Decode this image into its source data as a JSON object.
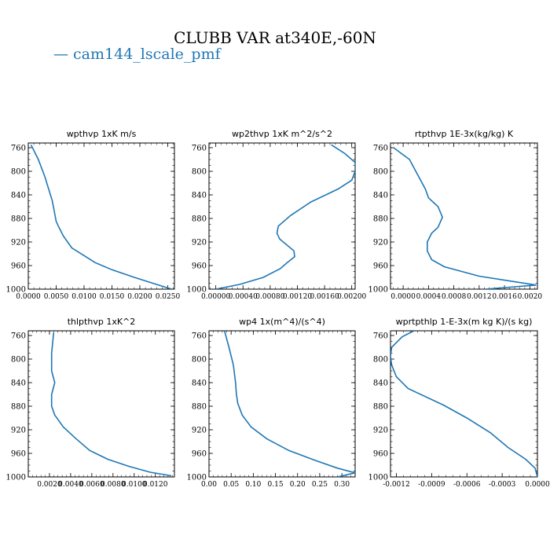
{
  "title": "CLUBB VAR at340E,-60N",
  "legend": [
    {
      "label": "— cam144_lscale_pmf",
      "color": "#1f77b4"
    }
  ],
  "chart_data": [
    {
      "type": "line",
      "title": "wpthvp   1xK m/s",
      "xlim": [
        0.0,
        0.0262
      ],
      "ylim": [
        1000,
        752
      ],
      "xticks": [
        0.0,
        0.005,
        0.01,
        0.015,
        0.02,
        0.025
      ],
      "xtick_labels": [
        "0.0000",
        "0.0050",
        "0.0100",
        "0.0150",
        "0.0200",
        "0.0250"
      ],
      "yticks": [
        760,
        800,
        840,
        880,
        920,
        960,
        1000
      ],
      "series": [
        {
          "x": [
            0.0005,
            0.0018,
            0.003,
            0.0043,
            0.005,
            0.0055,
            0.0063,
            0.0078,
            0.01,
            0.012,
            0.015,
            0.019,
            0.023,
            0.0257
          ],
          "y": [
            755,
            780,
            810,
            850,
            885,
            895,
            910,
            930,
            943,
            955,
            967,
            980,
            992,
            1000
          ]
        }
      ]
    },
    {
      "type": "line",
      "title": "wp2thvp   1xK m^2/s^2",
      "xlim": [
        -0.0001,
        0.00205
      ],
      "ylim": [
        1000,
        752
      ],
      "xticks": [
        0.0,
        0.0004,
        0.0008,
        0.0012,
        0.0016,
        0.002
      ],
      "xtick_labels": [
        "0.00000",
        "0.00040",
        "0.00080",
        "0.00120",
        "0.00160",
        "0.00200"
      ],
      "yticks": [
        760,
        800,
        840,
        880,
        920,
        960,
        1000
      ],
      "series": [
        {
          "x": [
            0.0017,
            0.0019,
            0.00205,
            0.00205,
            0.002,
            0.0018,
            0.0014,
            0.0011,
            0.00092,
            0.0009,
            0.00094,
            0.00115,
            0.00116,
            0.00105,
            0.00095,
            0.0007,
            0.00035,
            0.0
          ],
          "y": [
            755,
            770,
            785,
            800,
            815,
            830,
            852,
            875,
            893,
            905,
            915,
            935,
            945,
            955,
            965,
            980,
            992,
            1000
          ]
        }
      ]
    },
    {
      "type": "line",
      "title": "rtpthvp   1E-3x(kg/kg) K",
      "xlim": [
        -0.0002,
        0.00212
      ],
      "ylim": [
        1000,
        752
      ],
      "xticks": [
        0.0,
        0.0004,
        0.0008,
        0.0012,
        0.0016,
        0.002
      ],
      "xtick_labels": [
        "0.0000",
        "0.0004",
        "0.0008",
        "0.0012",
        "0.0016",
        "0.0020"
      ],
      "yticks": [
        760,
        800,
        840,
        880,
        920,
        960,
        1000
      ],
      "series": [
        {
          "x": [
            -0.00015,
            0.0001,
            0.0002,
            0.00035,
            0.0004,
            0.00055,
            0.00062,
            0.00055,
            0.00045,
            0.00038,
            0.00038,
            0.00045,
            0.00065,
            0.0012,
            0.0021,
            0.0013
          ],
          "y": [
            760,
            780,
            800,
            830,
            845,
            860,
            878,
            895,
            905,
            920,
            935,
            950,
            962,
            978,
            993,
            1000
          ]
        }
      ]
    },
    {
      "type": "line",
      "title": "thlpthvp   1xK^2",
      "xlim": [
        0.0,
        0.0138
      ],
      "ylim": [
        1000,
        752
      ],
      "xticks": [
        0.002,
        0.004,
        0.006,
        0.008,
        0.01,
        0.012
      ],
      "xtick_labels": [
        "0.0020",
        "0.0040",
        "0.0060",
        "0.0080",
        "0.0100",
        "0.0120"
      ],
      "yticks": [
        760,
        800,
        840,
        880,
        920,
        960,
        1000
      ],
      "series": [
        {
          "x": [
            0.0024,
            0.0022,
            0.0022,
            0.0025,
            0.0022,
            0.0022,
            0.0025,
            0.0033,
            0.0045,
            0.0058,
            0.0075,
            0.0095,
            0.0115,
            0.0135
          ],
          "y": [
            755,
            790,
            820,
            840,
            860,
            880,
            895,
            915,
            935,
            955,
            970,
            982,
            992,
            998
          ]
        }
      ]
    },
    {
      "type": "line",
      "title": "wp4   1x(m^4)/(s^4)",
      "xlim": [
        0.0,
        0.33
      ],
      "ylim": [
        1000,
        752
      ],
      "xticks": [
        0.0,
        0.05,
        0.1,
        0.15,
        0.2,
        0.25,
        0.3
      ],
      "xtick_labels": [
        "0.00",
        "0.05",
        "0.10",
        "0.15",
        "0.20",
        "0.25",
        "0.30"
      ],
      "yticks": [
        760,
        800,
        840,
        880,
        920,
        960,
        1000
      ],
      "series": [
        {
          "x": [
            0.035,
            0.045,
            0.055,
            0.06,
            0.062,
            0.065,
            0.075,
            0.095,
            0.13,
            0.18,
            0.24,
            0.29,
            0.33,
            0.29
          ],
          "y": [
            752,
            780,
            810,
            840,
            860,
            875,
            895,
            915,
            935,
            955,
            972,
            985,
            993,
            1000
          ]
        }
      ]
    },
    {
      "type": "line",
      "title": "wprtpthlp   1-E-3x(m kg K)/(s kg)",
      "xlim": [
        -0.00125,
        0.0
      ],
      "ylim": [
        1000,
        752
      ],
      "xticks": [
        -0.0012,
        -0.0009,
        -0.0006,
        -0.0003,
        0.0
      ],
      "xtick_labels": [
        "-0.0012",
        "-0.0009",
        "-0.0006",
        "-0.0003",
        "0.0000"
      ],
      "yticks": [
        760,
        800,
        840,
        880,
        920,
        960,
        1000
      ],
      "series": [
        {
          "x": [
            -0.00105,
            -0.00115,
            -0.00124,
            -0.00125,
            -0.00124,
            -0.0012,
            -0.0011,
            -0.0008,
            -0.0006,
            -0.0004,
            -0.00025,
            -0.0001,
            -2e-05,
            0.0
          ],
          "y": [
            752,
            762,
            780,
            795,
            810,
            830,
            850,
            878,
            900,
            925,
            950,
            970,
            985,
            1000
          ]
        }
      ]
    }
  ]
}
